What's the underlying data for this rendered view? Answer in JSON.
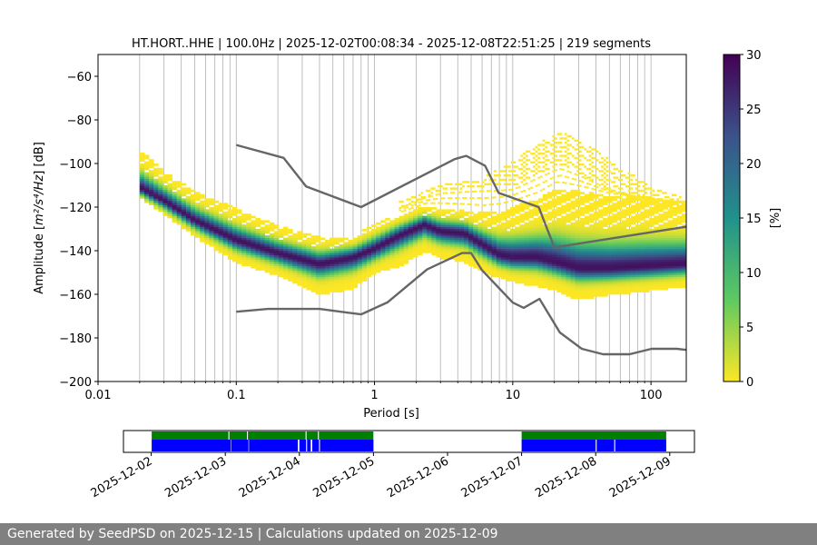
{
  "footer": {
    "text": "Generated by SeedPSD on 2025-12-15 | Calculations updated on 2025-12-09"
  },
  "colors": {
    "nm_line": "#666666",
    "coverage_data": "#0000ff",
    "coverage_psd": "#008000",
    "cmap": [
      "#fde725",
      "#5ec962",
      "#21918c",
      "#3b528b",
      "#440154"
    ]
  },
  "chart_data": [
    {
      "type": "heatmap",
      "title": "HT.HORT..HHE | 100.0Hz | 2025-12-02T00:08:34 - 2025-12-08T22:51:25 | 219 segments",
      "xlabel": "Period [s]",
      "ylabel_prefix": "Amplitude [",
      "ylabel_math": "m²/s⁴/Hz",
      "ylabel_suffix": "] [dB]",
      "x_scale": "log",
      "xlim": [
        0.01,
        180
      ],
      "ylim": [
        -200,
        -50
      ],
      "xticks": [
        {
          "v": 0.01,
          "label": "0.01"
        },
        {
          "v": 0.1,
          "label": "0.1"
        },
        {
          "v": 1,
          "label": "1"
        },
        {
          "v": 10,
          "label": "10"
        },
        {
          "v": 100,
          "label": "100"
        }
      ],
      "yticks": [
        {
          "v": -60,
          "label": "−60"
        },
        {
          "v": -80,
          "label": "−80"
        },
        {
          "v": -100,
          "label": "−100"
        },
        {
          "v": -120,
          "label": "−120"
        },
        {
          "v": -140,
          "label": "−140"
        },
        {
          "v": -160,
          "label": "−160"
        },
        {
          "v": -180,
          "label": "−180"
        },
        {
          "v": -200,
          "label": "−200"
        }
      ],
      "grid": true,
      "psd_band": {
        "period": [
          0.02,
          0.03,
          0.05,
          0.1,
          0.2,
          0.4,
          0.7,
          1,
          1.5,
          2.3,
          3,
          4.5,
          6,
          8,
          10,
          15,
          20,
          30,
          50,
          100,
          180
        ],
        "mode": [
          -111,
          -117,
          -126,
          -135,
          -141,
          -146,
          -143,
          -139,
          -133,
          -128,
          -131,
          -132,
          -137,
          -142,
          -143,
          -143,
          -145,
          -148,
          -148,
          -147,
          -146
        ],
        "low": [
          -115,
          -123,
          -133,
          -145,
          -151,
          -160,
          -157,
          -150,
          -147,
          -140,
          -143,
          -145,
          -149,
          -152,
          -154,
          -156,
          -158,
          -162,
          -160,
          -158,
          -156
        ],
        "high": [
          -94,
          -104,
          -113,
          -121,
          -129,
          -134,
          -134,
          -128,
          -124,
          -120,
          -121,
          -122,
          -123,
          -122,
          -120,
          -117,
          -112,
          -113,
          -115,
          -116,
          -118
        ],
        "outlier_band": {
          "period": [
            1.5,
            3,
            6,
            10,
            15,
            22,
            30,
            50,
            100,
            180
          ],
          "low": [
            -120,
            -112,
            -110,
            -110,
            -104,
            -100,
            -104,
            -112,
            -118,
            -122
          ],
          "high": [
            -118,
            -110,
            -108,
            -100,
            -92,
            -87,
            -90,
            -100,
            -112,
            -118
          ]
        }
      },
      "nhnm": {
        "period": [
          0.1,
          0.22,
          0.32,
          0.8,
          3.8,
          4.6,
          6.3,
          7.9,
          15.4,
          20,
          180
        ],
        "db": [
          -91.5,
          -97.4,
          -110.5,
          -120.0,
          -98.0,
          -96.5,
          -101.0,
          -113.5,
          -120.0,
          -138.5,
          -129.0
        ]
      },
      "nlnm": {
        "period": [
          0.1,
          0.17,
          0.4,
          0.8,
          1.24,
          2.4,
          4.3,
          5.0,
          6.0,
          10,
          12,
          15.6,
          21.9,
          31.6,
          45,
          70,
          101,
          154,
          180
        ],
        "db": [
          -168,
          -166.7,
          -166.7,
          -169.2,
          -163.7,
          -148.6,
          -141.1,
          -141.1,
          -149.0,
          -163.8,
          -166.2,
          -162.1,
          -177.5,
          -185.0,
          -187.5,
          -187.5,
          -185.0,
          -185.0,
          -185.5
        ]
      },
      "colorbar": {
        "label": "[%]",
        "range": [
          0,
          30
        ],
        "ticks": [
          {
            "v": 0,
            "label": "0"
          },
          {
            "v": 5,
            "label": "5"
          },
          {
            "v": 10,
            "label": "10"
          },
          {
            "v": 15,
            "label": "15"
          },
          {
            "v": 20,
            "label": "20"
          },
          {
            "v": 25,
            "label": "25"
          },
          {
            "v": 30,
            "label": "30"
          }
        ]
      }
    },
    {
      "type": "timeline",
      "xlim": [
        "2025-12-01T15:00",
        "2025-12-09T08:00"
      ],
      "ticks": [
        "2025-12-02",
        "2025-12-03",
        "2025-12-04",
        "2025-12-05",
        "2025-12-06",
        "2025-12-07",
        "2025-12-08",
        "2025-12-09"
      ],
      "data_segments": [
        [
          "2025-12-02T00:08",
          "2025-12-03T01:50"
        ],
        [
          "2025-12-03T02:00",
          "2025-12-03T07:30"
        ],
        [
          "2025-12-03T07:40",
          "2025-12-03T23:30"
        ],
        [
          "2025-12-04T00:00",
          "2025-12-04T02:10"
        ],
        [
          "2025-12-04T02:30",
          "2025-12-04T03:40"
        ],
        [
          "2025-12-04T04:10",
          "2025-12-04T06:20"
        ],
        [
          "2025-12-04T06:40",
          "2025-12-04T23:59"
        ],
        [
          "2025-12-07T00:00",
          "2025-12-08T00:00"
        ],
        [
          "2025-12-08T00:20",
          "2025-12-08T06:00"
        ],
        [
          "2025-12-08T06:20",
          "2025-12-08T22:51"
        ]
      ],
      "psd_segments": [
        [
          "2025-12-02T00:08",
          "2025-12-03T01:00"
        ],
        [
          "2025-12-03T01:20",
          "2025-12-03T07:00"
        ],
        [
          "2025-12-03T07:20",
          "2025-12-04T02:00"
        ],
        [
          "2025-12-04T02:20",
          "2025-12-04T06:00"
        ],
        [
          "2025-12-04T06:20",
          "2025-12-04T23:59"
        ],
        [
          "2025-12-07T00:00",
          "2025-12-08T22:51"
        ]
      ]
    }
  ]
}
